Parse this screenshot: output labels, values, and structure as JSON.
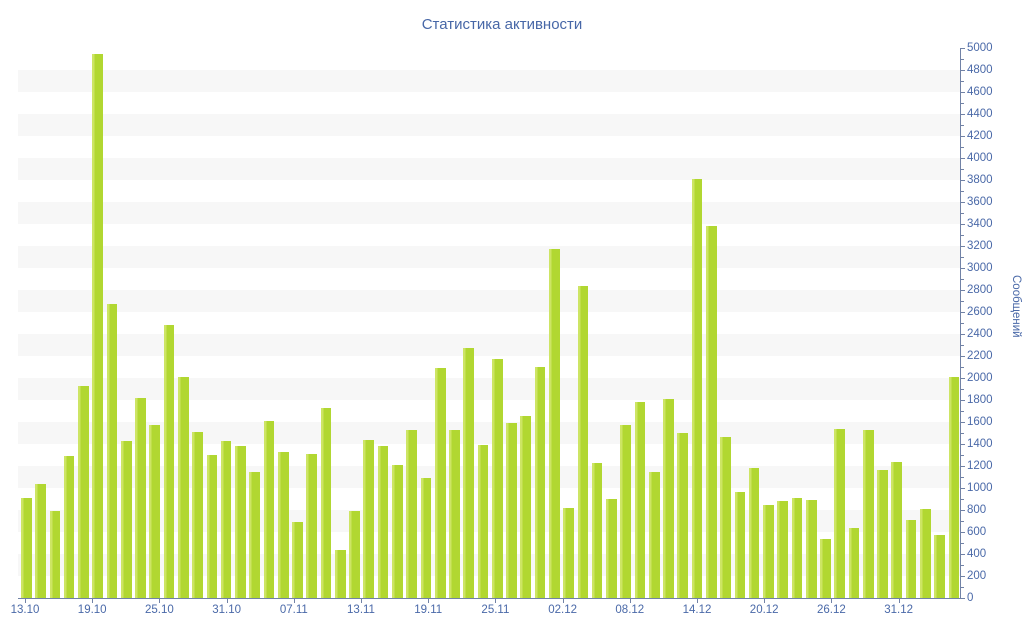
{
  "chart_data": {
    "type": "bar",
    "title": "Статистика активности",
    "xlabel": "",
    "ylabel": "Сообщений",
    "ylim": [
      0,
      5000
    ],
    "ytick_step": 200,
    "ytick_minor_step": 100,
    "grid": "alternating horizontal bands",
    "legend": "none",
    "x_tick_labels": [
      "13.10",
      "19.10",
      "25.10",
      "31.10",
      "07.11",
      "13.11",
      "19.11",
      "25.11",
      "02.12",
      "08.12",
      "14.12",
      "20.12",
      "26.12",
      "31.12"
    ],
    "values": [
      910,
      1040,
      790,
      1290,
      1930,
      4950,
      2670,
      1430,
      1815,
      1570,
      2480,
      2010,
      1510,
      1300,
      1430,
      1380,
      1150,
      1610,
      1330,
      690,
      1310,
      1730,
      440,
      790,
      1435,
      1385,
      1205,
      1530,
      1095,
      2090,
      1530,
      2270,
      1390,
      2170,
      1590,
      1655,
      2100,
      3170,
      820,
      2840,
      1225,
      900,
      1575,
      1785,
      1150,
      1805,
      1500,
      3810,
      3385,
      1465,
      960,
      1180,
      845,
      880,
      910,
      890,
      535,
      1540,
      635,
      1530,
      1160,
      1240,
      710,
      805,
      575,
      2010
    ],
    "colors": {
      "bar": "#b1d731",
      "bar_highlight": "#cde564",
      "band": "#f7f7f7",
      "axis": "#7182a6",
      "labels": "#4a69a8",
      "title": "#4767a7",
      "background": "#ffffff"
    }
  }
}
